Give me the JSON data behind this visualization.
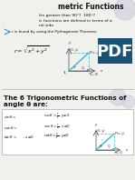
{
  "bg_color": "#f0f0ec",
  "white": "#ffffff",
  "circle_color": "#ccccdd",
  "text_color": "#111111",
  "cyan_color": "#33bbcc",
  "dark_color": "#1a3a5c",
  "gray_line": "#aaaaaa",
  "title": "metric Functions",
  "b1": "les greater than 90°?  180°?",
  "b2": "ic functions are defined in terms of a",
  "b3": "ral side",
  "b4": "r is found by using the Pythagorean Theorem:",
  "sec_title1": "The 6 Trigonometric Functions of",
  "sec_title2": "angle θ are:",
  "arrow_bullet_color": "#3399bb",
  "pdf_color": "#1a5276",
  "diagram_color": "#33bbcc"
}
